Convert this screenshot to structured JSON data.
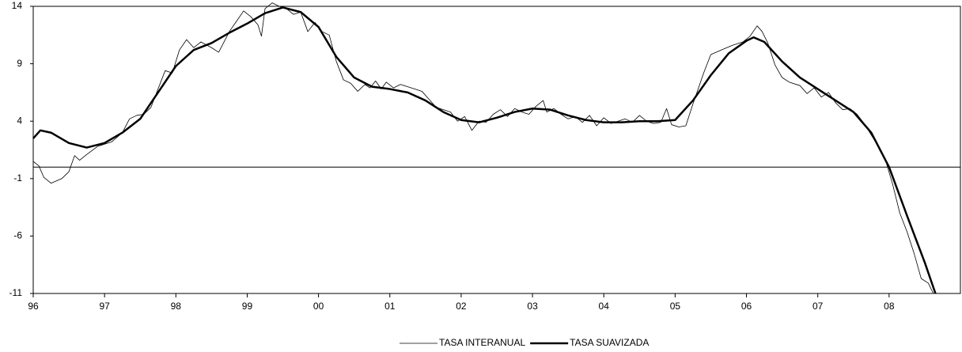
{
  "chart_data": {
    "type": "line",
    "xlim": [
      1996,
      2009
    ],
    "ylim": [
      -11,
      14
    ],
    "xticks": [
      {
        "value": 1996,
        "label": "96"
      },
      {
        "value": 1997,
        "label": "97"
      },
      {
        "value": 1998,
        "label": "98"
      },
      {
        "value": 1999,
        "label": "99"
      },
      {
        "value": 2000,
        "label": "00"
      },
      {
        "value": 2001,
        "label": "01"
      },
      {
        "value": 2002,
        "label": "02"
      },
      {
        "value": 2003,
        "label": "03"
      },
      {
        "value": 2004,
        "label": "04"
      },
      {
        "value": 2005,
        "label": "05"
      },
      {
        "value": 2006,
        "label": "06"
      },
      {
        "value": 2007,
        "label": "07"
      },
      {
        "value": 2008,
        "label": "08"
      }
    ],
    "yticks": [
      14,
      9,
      4,
      -1,
      -6,
      -11
    ],
    "reference_line": 0,
    "legend": "bottom",
    "series": [
      {
        "name": "TASA INTERANUAL",
        "color": "#000000",
        "width": 0.8,
        "x": [
          1996.0,
          1996.08,
          1996.15,
          1996.25,
          1996.4,
          1996.5,
          1996.58,
          1996.65,
          1996.75,
          1996.9,
          1997.0,
          1997.1,
          1997.25,
          1997.35,
          1997.45,
          1997.55,
          1997.65,
          1997.75,
          1997.85,
          1997.95,
          1998.05,
          1998.15,
          1998.25,
          1998.35,
          1998.5,
          1998.6,
          1998.75,
          1998.85,
          1998.95,
          1999.05,
          1999.15,
          1999.2,
          1999.25,
          1999.35,
          1999.45,
          1999.55,
          1999.65,
          1999.75,
          1999.85,
          1999.95,
          2000.05,
          2000.15,
          2000.25,
          2000.35,
          2000.45,
          2000.55,
          2000.65,
          2000.72,
          2000.8,
          2000.88,
          2000.95,
          2001.05,
          2001.15,
          2001.25,
          2001.35,
          2001.45,
          2001.55,
          2001.65,
          2001.75,
          2001.85,
          2001.95,
          2002.05,
          2002.15,
          2002.25,
          2002.35,
          2002.45,
          2002.55,
          2002.65,
          2002.75,
          2002.85,
          2002.95,
          2003.05,
          2003.15,
          2003.2,
          2003.3,
          2003.4,
          2003.5,
          2003.6,
          2003.7,
          2003.8,
          2003.9,
          2004.0,
          2004.1,
          2004.2,
          2004.3,
          2004.4,
          2004.5,
          2004.6,
          2004.7,
          2004.8,
          2004.88,
          2004.95,
          2005.05,
          2005.15,
          2005.25,
          2005.4,
          2005.5,
          2005.65,
          2005.8,
          2005.95,
          2006.05,
          2006.15,
          2006.22,
          2006.3,
          2006.4,
          2006.5,
          2006.6,
          2006.75,
          2006.85,
          2006.95,
          2007.05,
          2007.15,
          2007.25,
          2007.35,
          2007.45,
          2007.55,
          2007.65,
          2007.75,
          2007.85,
          2007.95,
          2008.05,
          2008.15,
          2008.25,
          2008.35,
          2008.45,
          2008.55,
          2008.62
        ],
        "values": [
          0.5,
          0.1,
          -0.9,
          -1.4,
          -1.0,
          -0.4,
          1.0,
          0.6,
          1.1,
          1.8,
          2.0,
          2.2,
          3.0,
          4.2,
          4.5,
          4.6,
          5.2,
          6.8,
          8.4,
          8.2,
          10.2,
          11.1,
          10.4,
          10.9,
          10.4,
          10.0,
          11.8,
          12.7,
          13.6,
          13.1,
          12.4,
          11.4,
          13.8,
          14.3,
          14.0,
          13.8,
          13.3,
          13.5,
          11.8,
          12.6,
          11.8,
          11.5,
          9.2,
          7.6,
          7.3,
          6.6,
          7.2,
          6.9,
          7.5,
          6.8,
          7.4,
          6.9,
          7.2,
          7.0,
          6.8,
          6.6,
          5.9,
          5.2,
          5.0,
          4.8,
          4.0,
          4.4,
          3.2,
          4.0,
          3.9,
          4.6,
          5.0,
          4.4,
          5.1,
          4.8,
          4.6,
          5.3,
          5.8,
          4.8,
          5.1,
          4.6,
          4.2,
          4.4,
          3.9,
          4.5,
          3.6,
          4.3,
          3.8,
          4.0,
          4.2,
          3.9,
          4.5,
          4.0,
          3.8,
          3.9,
          5.1,
          3.7,
          3.5,
          3.6,
          5.5,
          8.2,
          9.8,
          10.2,
          10.6,
          10.9,
          11.4,
          12.3,
          11.8,
          10.8,
          8.9,
          7.8,
          7.4,
          7.1,
          6.4,
          6.9,
          6.1,
          6.5,
          5.6,
          5.0,
          5.1,
          4.6,
          3.8,
          2.8,
          1.8,
          0.6,
          -1.5,
          -4.0,
          -5.6,
          -7.5,
          -9.7,
          -10.1,
          -11.0
        ]
      },
      {
        "name": "TASA SUAVIZADA",
        "color": "#000000",
        "width": 2.5,
        "x": [
          1996.0,
          1996.1,
          1996.25,
          1996.5,
          1996.75,
          1997.0,
          1997.25,
          1997.5,
          1997.75,
          1998.0,
          1998.25,
          1998.5,
          1998.75,
          1999.0,
          1999.25,
          1999.5,
          1999.75,
          2000.0,
          2000.25,
          2000.5,
          2000.75,
          2001.0,
          2001.25,
          2001.5,
          2001.75,
          2002.0,
          2002.25,
          2002.5,
          2002.75,
          2003.0,
          2003.25,
          2003.5,
          2003.75,
          2004.0,
          2004.25,
          2004.5,
          2004.75,
          2005.0,
          2005.25,
          2005.5,
          2005.75,
          2006.0,
          2006.1,
          2006.25,
          2006.5,
          2006.75,
          2007.0,
          2007.25,
          2007.5,
          2007.75,
          2008.0,
          2008.25,
          2008.5,
          2008.65
        ],
        "values": [
          2.5,
          3.2,
          3.0,
          2.1,
          1.7,
          2.1,
          3.0,
          4.2,
          6.5,
          8.8,
          10.2,
          10.8,
          11.7,
          12.5,
          13.4,
          13.9,
          13.5,
          12.2,
          9.6,
          7.8,
          7.0,
          6.8,
          6.5,
          5.8,
          4.8,
          4.1,
          3.9,
          4.3,
          4.8,
          5.1,
          5.0,
          4.5,
          4.1,
          3.9,
          3.9,
          4.0,
          4.0,
          4.1,
          5.8,
          8.0,
          9.9,
          11.0,
          11.3,
          10.9,
          9.2,
          7.8,
          6.8,
          5.8,
          4.8,
          3.0,
          0.0,
          -4.2,
          -8.3,
          -11.0
        ]
      }
    ]
  }
}
